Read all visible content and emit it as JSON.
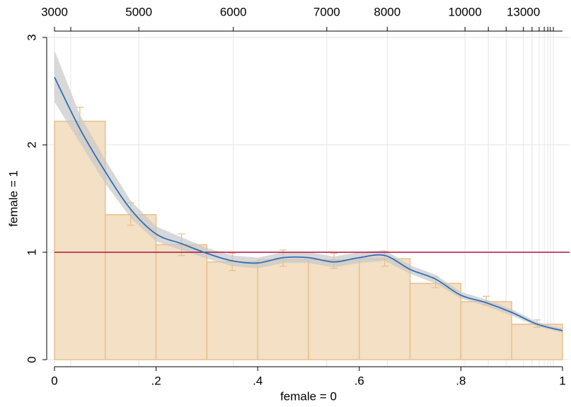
{
  "chart_data": {
    "type": "relative-distribution",
    "xlabel": "female = 0",
    "ylabel": "female = 1",
    "xlim": [
      0,
      1
    ],
    "ylim": [
      0,
      3
    ],
    "xticks": [
      0,
      {
        "value": 0.2,
        "label": ".2"
      },
      {
        "value": 0.4,
        "label": ".4"
      },
      {
        "value": 0.6,
        "label": ".6"
      },
      {
        "value": 0.8,
        "label": ".8"
      },
      1
    ],
    "yticks": [
      0,
      1,
      2,
      3
    ],
    "x2ticks": [
      {
        "value": 0.0,
        "label": "3000"
      },
      {
        "value": 0.166,
        "label": "5000"
      },
      {
        "value": 0.352,
        "label": "6000"
      },
      {
        "value": 0.536,
        "label": "7000"
      },
      {
        "value": 0.655,
        "label": "8000"
      },
      {
        "value": 0.808,
        "label": "10000"
      },
      {
        "value": 0.923,
        "label": "13000"
      }
    ],
    "x2ticks_minor": [
      0.032,
      0.854,
      0.889,
      0.94,
      0.954,
      0.964,
      0.971,
      0.976,
      0.982
    ],
    "grid": true,
    "reference_line": {
      "value": 1,
      "color": "#b0123f"
    },
    "histogram": {
      "color": "#f3e0c5",
      "edge": "#e8c08d",
      "bins": [
        0,
        0.1,
        0.2,
        0.3,
        0.4,
        0.5,
        0.6,
        0.7,
        0.8,
        0.9,
        1
      ],
      "values": [
        2.22,
        1.35,
        1.07,
        0.91,
        0.93,
        0.93,
        0.94,
        0.71,
        0.54,
        0.33
      ],
      "lower": [
        2.1,
        1.25,
        0.97,
        0.83,
        0.87,
        0.85,
        0.87,
        0.67,
        0.51,
        0.3
      ],
      "upper": [
        2.35,
        1.46,
        1.17,
        0.99,
        1.02,
        0.99,
        1.01,
        0.77,
        0.59,
        0.37
      ]
    },
    "density": {
      "color": "#2f6fb5",
      "band_color": "#c8c8c8",
      "x": [
        0,
        0.05,
        0.1,
        0.15,
        0.2,
        0.25,
        0.3,
        0.35,
        0.4,
        0.45,
        0.5,
        0.55,
        0.6,
        0.65,
        0.7,
        0.75,
        0.8,
        0.85,
        0.9,
        0.95,
        1
      ],
      "values": [
        2.63,
        2.15,
        1.75,
        1.4,
        1.17,
        1.08,
        0.99,
        0.92,
        0.9,
        0.95,
        0.95,
        0.91,
        0.95,
        0.97,
        0.84,
        0.75,
        0.6,
        0.53,
        0.44,
        0.33,
        0.27
      ],
      "lower": [
        2.4,
        2.02,
        1.64,
        1.32,
        1.1,
        1.02,
        0.94,
        0.87,
        0.85,
        0.9,
        0.9,
        0.86,
        0.9,
        0.92,
        0.8,
        0.71,
        0.57,
        0.5,
        0.41,
        0.31,
        0.25
      ],
      "upper": [
        2.88,
        2.28,
        1.86,
        1.48,
        1.24,
        1.14,
        1.04,
        0.97,
        0.95,
        1.0,
        1.0,
        0.96,
        1.0,
        1.02,
        0.88,
        0.79,
        0.63,
        0.56,
        0.47,
        0.35,
        0.29
      ]
    }
  }
}
